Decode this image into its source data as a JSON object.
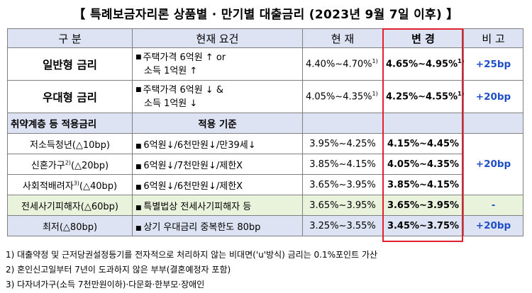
{
  "title": "【 특례보금자리론 상품별 · 만기별 대출금리 (2023년 9월 7일 이후) 】",
  "headers": {
    "category": "구 분",
    "condition": "현재 요건",
    "current": "현 재",
    "changed": "변 경",
    "compare": "비 고"
  },
  "general": {
    "name": "일반형 금리",
    "cond_line1": "주택가격 6억원 ↑ or",
    "cond_line2": "소득 1억원 ↑",
    "current": "4.40%~4.70%",
    "current_note": "1)",
    "changed": "4.65%~4.95%",
    "changed_note": "1)",
    "diff": "+25bp"
  },
  "preferential": {
    "name": "우대형 금리",
    "cond_line1": "주택가격 6억원 ↓ &",
    "cond_line2": "소득 1억원 ↓",
    "current": "4.05%~4.35%",
    "current_note": "1)",
    "changed": "4.25%~4.55%",
    "changed_note": "1)",
    "diff": "+20bp"
  },
  "vulnerable": {
    "header_name": "취약계층 등 적용금리",
    "header_criteria": "적용 기준",
    "rows": [
      {
        "name": "저소득청년(△10bp)",
        "name_note": "",
        "cond": "6억원↓/6천만원↓/만39세↓",
        "current": "3.95%~4.25%",
        "changed": "4.15%~4.45%"
      },
      {
        "name": "신혼가구",
        "name_note": "2)",
        "name_tail": "(△20bp)",
        "cond": "6억원↓/7천만원↓/제한X",
        "current": "3.85%~4.15%",
        "changed": "4.05%~4.35%"
      },
      {
        "name": "사회적배려자",
        "name_note": "3)",
        "name_tail": "(△40bp)",
        "cond": "6억원↓/6천만원↓/제한X",
        "current": "3.65%~3.95%",
        "changed": "3.85%~4.15%"
      },
      {
        "name": "전세사기피해자(△60bp)",
        "cond": "특별법상 전세사기피해자 등",
        "current": "3.65%~3.95%",
        "changed": "3.65%~3.95%",
        "diff": "-"
      },
      {
        "name": "최저(△80bp)",
        "cond": "상기 우대금리 중복한도 80bp",
        "current": "3.25%~3.55%",
        "changed": "3.45%~3.75%",
        "diff": "+20bp"
      }
    ],
    "group_diff": "+20bp"
  },
  "notes": [
    "1) 대출약정 및 근저당권설정등기를 전자적으로 처리하지 않는 비대면('u'방식) 금리는 0.1%포인트 가산",
    "2) 혼인신고일부터 7년이 도과하지 않은 부부(결혼예정자 포함)",
    "3) 다자녀가구(소득 7천만원이하)·다문화·한부모·장애인"
  ],
  "colors": {
    "header_bg": "#dde3f2",
    "green_bg": "#e9f3dc",
    "highlight_border": "#e0202e",
    "diff_text": "#1f4ec6"
  }
}
